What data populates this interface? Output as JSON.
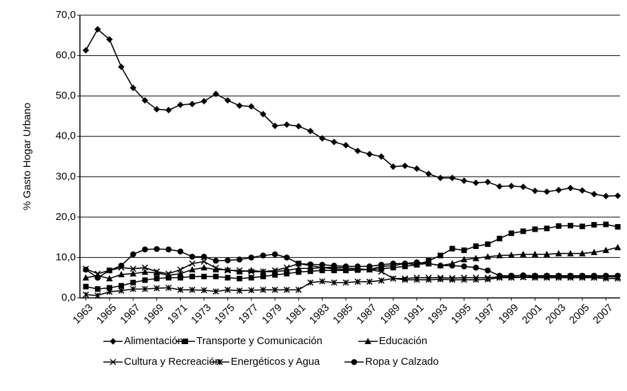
{
  "chart_data": {
    "type": "line",
    "y_label": "% Gasto Hogar Urbano",
    "x": [
      1963,
      1964,
      1965,
      1966,
      1967,
      1968,
      1969,
      1970,
      1971,
      1972,
      1973,
      1974,
      1975,
      1976,
      1977,
      1978,
      1979,
      1980,
      1981,
      1982,
      1983,
      1984,
      1985,
      1986,
      1987,
      1988,
      1989,
      1990,
      1991,
      1992,
      1993,
      1994,
      1995,
      1996,
      1997,
      1998,
      1999,
      2000,
      2001,
      2002,
      2003,
      2004,
      2005,
      2006,
      2007,
      2008
    ],
    "xlim": [
      1962.5,
      2008.2
    ],
    "xticks": [
      1963,
      1965,
      1967,
      1969,
      1971,
      1973,
      1975,
      1977,
      1979,
      1981,
      1983,
      1985,
      1987,
      1989,
      1991,
      1993,
      1995,
      1997,
      1999,
      2001,
      2003,
      2005,
      2007
    ],
    "ylim": [
      0,
      70
    ],
    "yticks": [
      {
        "value": 0,
        "label": "0,0"
      },
      {
        "value": 10,
        "label": "10,0"
      },
      {
        "value": 20,
        "label": "20,0"
      },
      {
        "value": 30,
        "label": "30,0"
      },
      {
        "value": 40,
        "label": "40,0"
      },
      {
        "value": 50,
        "label": "50,0"
      },
      {
        "value": 60,
        "label": "60,0"
      },
      {
        "value": 70,
        "label": "70,0"
      }
    ],
    "grid": true,
    "legend": "bottom",
    "series": [
      {
        "name": "Alimentación",
        "color": "#000000",
        "marker": "diamond",
        "values": [
          61.3,
          66.5,
          64,
          57.2,
          52,
          48.9,
          46.7,
          46.5,
          47.8,
          48,
          48.7,
          50.5,
          48.9,
          47.6,
          47.4,
          45.5,
          42.6,
          42.9,
          42.5,
          41.3,
          39.5,
          38.6,
          37.8,
          36.4,
          35.6,
          35,
          32.5,
          32.7,
          32,
          30.7,
          29.7,
          29.7,
          29,
          28.5,
          28.7,
          27.6,
          27.7,
          27.5,
          26.5,
          26.3,
          26.7,
          27.2,
          26.6,
          25.7,
          25.2,
          25.3
        ]
      },
      {
        "name": "Transporte y Comunicación",
        "color": "#000000",
        "marker": "square",
        "values": [
          2.8,
          2.2,
          2.5,
          3,
          3.8,
          4.4,
          4.8,
          5,
          5,
          5.3,
          5.3,
          5.3,
          5,
          4.8,
          5,
          5.3,
          5.7,
          6,
          6.4,
          6.6,
          6.8,
          6.8,
          6.8,
          6.9,
          7,
          7.2,
          7.5,
          7.8,
          8.2,
          9.2,
          10.5,
          12.2,
          11.8,
          12.8,
          13.3,
          14.7,
          16,
          16.5,
          17,
          17.2,
          17.8,
          17.9,
          17.7,
          18.1,
          18.2,
          17.6
        ]
      },
      {
        "name": "Educación",
        "color": "#000000",
        "marker": "triangle",
        "values": [
          5,
          5.5,
          4.8,
          5.8,
          6,
          6.4,
          6.2,
          5.6,
          6,
          7,
          7.5,
          7,
          7,
          6.5,
          6.8,
          6.5,
          6.5,
          6.8,
          7.3,
          7.3,
          7.5,
          7.6,
          7.4,
          7.2,
          7,
          7.8,
          8,
          8.5,
          8.3,
          8.5,
          8,
          8.5,
          9.5,
          9.8,
          10.2,
          10.5,
          10.6,
          10.8,
          10.8,
          10.8,
          11,
          11,
          11,
          11.3,
          11.8,
          12.5
        ]
      },
      {
        "name": "Cultura y Recreación",
        "color": "#000000",
        "marker": "x",
        "values": [
          7.2,
          6,
          6.8,
          7.5,
          7.2,
          7.5,
          6.5,
          6,
          7,
          8.5,
          9,
          7.4,
          6.8,
          6.8,
          6.5,
          6.5,
          6.8,
          7.5,
          8.5,
          8,
          7.5,
          7.2,
          7,
          7,
          7,
          6.5,
          4.8,
          4.8,
          5,
          5,
          5,
          4.9,
          5,
          5,
          5,
          5.2,
          5.2,
          5.2,
          5.3,
          5.3,
          5.3,
          5.3,
          5.3,
          5.2,
          5.2,
          5.2
        ]
      },
      {
        "name": "Energéticos y Agua",
        "color": "#000000",
        "marker": "star",
        "values": [
          0.8,
          0.6,
          1.5,
          1.8,
          2.2,
          2.2,
          2.4,
          2.5,
          2,
          2,
          1.9,
          1.6,
          2,
          1.8,
          1.9,
          2,
          2,
          2,
          2,
          3.8,
          4.1,
          3.8,
          3.8,
          4,
          4,
          4.3,
          4.8,
          4.5,
          4.5,
          4.5,
          4.6,
          4.5,
          4.5,
          4.5,
          4.6,
          5,
          5,
          5.1,
          5,
          5,
          5,
          5,
          5,
          5,
          4.8,
          4.8
        ]
      },
      {
        "name": "Ropa y Calzado",
        "color": "#000000",
        "marker": "circle",
        "values": [
          7,
          5,
          6.8,
          8,
          10.8,
          12,
          12.1,
          12,
          11.5,
          10.2,
          10.2,
          9.2,
          9.3,
          9.5,
          10,
          10.5,
          10.8,
          10,
          8.5,
          8.3,
          8.2,
          8,
          7.8,
          7.8,
          7.8,
          8.2,
          8.5,
          8.5,
          8.8,
          8.5,
          8,
          8,
          7.8,
          7.5,
          6.8,
          5.5,
          5.5,
          5.6,
          5.5,
          5.5,
          5.5,
          5.5,
          5.5,
          5.5,
          5.5,
          5.5
        ]
      }
    ]
  }
}
